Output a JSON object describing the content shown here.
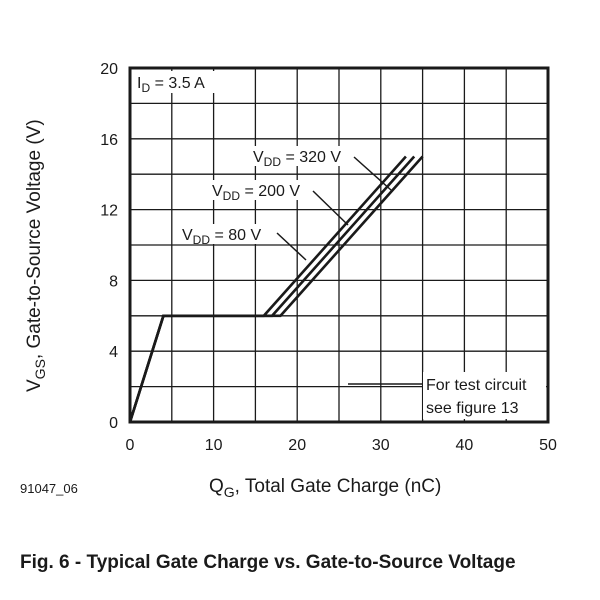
{
  "chart_data": {
    "type": "line",
    "title": "Fig. 6 - Typical Gate Charge vs. Gate-to-Source Voltage",
    "figure_id": "91047_06",
    "xlabel": {
      "main": "Q",
      "sub": "G",
      "rest": ", Total Gate Charge (nC)"
    },
    "ylabel": {
      "main": "V",
      "sub": "GS",
      "rest": ", Gate-to-Source Voltage (V)"
    },
    "xlim": [
      0,
      50
    ],
    "ylim": [
      0,
      20
    ],
    "xticks": [
      0,
      10,
      20,
      30,
      40,
      50
    ],
    "yticks": [
      0,
      4,
      8,
      12,
      16,
      20
    ],
    "grid": true,
    "condition": {
      "main": "I",
      "sub": "D",
      "rest": " = 3.5 A"
    },
    "annotation": [
      "For test circuit",
      "see figure 13"
    ],
    "series": [
      {
        "name": "VDD = 80 V",
        "label_main": "V",
        "label_sub": "DD",
        "label_rest": " = 80 V",
        "x": [
          0,
          4,
          16,
          33
        ],
        "y": [
          0,
          6,
          6,
          15
        ]
      },
      {
        "name": "VDD = 200 V",
        "label_main": "V",
        "label_sub": "DD",
        "label_rest": " = 200 V",
        "x": [
          0,
          4,
          17,
          34
        ],
        "y": [
          0,
          6,
          6,
          15
        ]
      },
      {
        "name": "VDD = 320 V",
        "label_main": "V",
        "label_sub": "DD",
        "label_rest": " = 320 V",
        "x": [
          0,
          4,
          18,
          35
        ],
        "y": [
          0,
          6,
          6,
          15
        ]
      }
    ]
  }
}
